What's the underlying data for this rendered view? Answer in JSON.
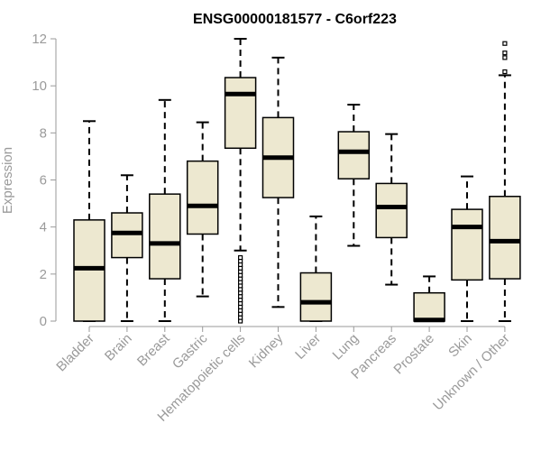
{
  "chart_data": {
    "type": "boxplot",
    "title": "ENSG00000181577 - C6orf223",
    "xlabel": "",
    "ylabel": "Expression",
    "ylim": [
      0,
      12
    ],
    "yticks": [
      0,
      2,
      4,
      6,
      8,
      10,
      12
    ],
    "grid": false,
    "box_fill": "#ede8d0",
    "line_color": "#000000",
    "categories": [
      "Bladder",
      "Brain",
      "Breast",
      "Gastric",
      "Hematopoietic cells",
      "Kidney",
      "Liver",
      "Lung",
      "Pancreas",
      "Prostate",
      "Skin",
      "Unknown / Other"
    ],
    "boxes": [
      {
        "category": "Bladder",
        "min": 0.0,
        "q1": 0.0,
        "median": 2.25,
        "q3": 4.3,
        "max": 8.5,
        "outliers": []
      },
      {
        "category": "Brain",
        "min": 0.0,
        "q1": 2.7,
        "median": 3.75,
        "q3": 4.6,
        "max": 6.2,
        "outliers": []
      },
      {
        "category": "Breast",
        "min": 0.0,
        "q1": 1.8,
        "median": 3.3,
        "q3": 5.4,
        "max": 9.4,
        "outliers": []
      },
      {
        "category": "Gastric",
        "min": 1.05,
        "q1": 3.7,
        "median": 4.9,
        "q3": 6.8,
        "max": 8.45,
        "outliers": []
      },
      {
        "category": "Hematopoietic cells",
        "min": 3.0,
        "q1": 7.35,
        "median": 9.65,
        "q3": 10.35,
        "max": 12.0,
        "outliers": [
          0.0,
          0.15,
          0.3,
          0.45,
          0.6,
          0.75,
          0.9,
          1.05,
          1.2,
          1.35,
          1.5,
          1.65,
          1.8,
          1.95,
          2.1,
          2.25,
          2.4,
          2.55,
          2.7
        ]
      },
      {
        "category": "Kidney",
        "min": 0.6,
        "q1": 5.25,
        "median": 6.95,
        "q3": 8.65,
        "max": 11.2,
        "outliers": []
      },
      {
        "category": "Liver",
        "min": 0.0,
        "q1": 0.0,
        "median": 0.8,
        "q3": 2.05,
        "max": 4.45,
        "outliers": []
      },
      {
        "category": "Lung",
        "min": 3.2,
        "q1": 6.05,
        "median": 7.2,
        "q3": 8.05,
        "max": 9.2,
        "outliers": []
      },
      {
        "category": "Pancreas",
        "min": 1.55,
        "q1": 3.55,
        "median": 4.85,
        "q3": 5.85,
        "max": 7.95,
        "outliers": []
      },
      {
        "category": "Prostate",
        "min": 0.0,
        "q1": 0.0,
        "median": 0.05,
        "q3": 1.2,
        "max": 1.9,
        "outliers": []
      },
      {
        "category": "Skin",
        "min": 0.0,
        "q1": 1.75,
        "median": 4.0,
        "q3": 4.75,
        "max": 6.15,
        "outliers": []
      },
      {
        "category": "Unknown / Other",
        "min": 0.0,
        "q1": 1.8,
        "median": 3.4,
        "q3": 5.3,
        "max": 10.45,
        "outliers": [
          10.6,
          11.2,
          11.4,
          11.8
        ]
      }
    ]
  }
}
